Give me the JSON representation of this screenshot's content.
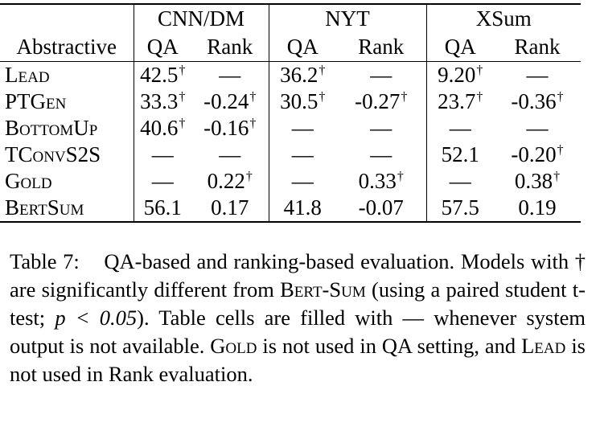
{
  "table": {
    "group_headers": [
      "CNN/DM",
      "NYT",
      "XSum"
    ],
    "row_header_label": "Abstractive",
    "sub_headers": [
      "QA",
      "Rank",
      "QA",
      "Rank",
      "QA",
      "Rank"
    ],
    "rows": [
      {
        "name": "Lead",
        "cells": [
          {
            "v": "42.5",
            "d": true
          },
          {
            "v": "—",
            "d": false
          },
          {
            "v": "36.2",
            "d": true
          },
          {
            "v": "—",
            "d": false
          },
          {
            "v": "9.20",
            "d": true
          },
          {
            "v": "—",
            "d": false
          }
        ]
      },
      {
        "name": "PTGen",
        "cells": [
          {
            "v": "33.3",
            "d": true
          },
          {
            "v": "-0.24",
            "d": true
          },
          {
            "v": "30.5",
            "d": true
          },
          {
            "v": "-0.27",
            "d": true
          },
          {
            "v": "23.7",
            "d": true
          },
          {
            "v": "-0.36",
            "d": true
          }
        ]
      },
      {
        "name": "BottomUp",
        "cells": [
          {
            "v": "40.6",
            "d": true
          },
          {
            "v": "-0.16",
            "d": true
          },
          {
            "v": "—",
            "d": false
          },
          {
            "v": "—",
            "d": false
          },
          {
            "v": "—",
            "d": false
          },
          {
            "v": "—",
            "d": false
          }
        ]
      },
      {
        "name": "TConvS2S",
        "cells": [
          {
            "v": "—",
            "d": false
          },
          {
            "v": "—",
            "d": false
          },
          {
            "v": "—",
            "d": false
          },
          {
            "v": "—",
            "d": false
          },
          {
            "v": "52.1",
            "d": false
          },
          {
            "v": "-0.20",
            "d": true
          }
        ]
      },
      {
        "name": "Gold",
        "cells": [
          {
            "v": "—",
            "d": false
          },
          {
            "v": "0.22",
            "d": true
          },
          {
            "v": "—",
            "d": false
          },
          {
            "v": "0.33",
            "d": true
          },
          {
            "v": "—",
            "d": false
          },
          {
            "v": "0.38",
            "d": true
          }
        ]
      },
      {
        "name": "BertSum",
        "cells": [
          {
            "v": "56.1",
            "d": false
          },
          {
            "v": "0.17",
            "d": false
          },
          {
            "v": "41.8",
            "d": false
          },
          {
            "v": "-0.07",
            "d": false
          },
          {
            "v": "57.5",
            "d": false
          },
          {
            "v": "0.19",
            "d": false
          }
        ]
      }
    ],
    "dagger_symbol": "†"
  },
  "caption": {
    "label": "Table 7:",
    "text_1": "QA-based and ranking-based evaluation. Models with † are significantly different from ",
    "sc_1": "Bert-Sum",
    "text_2": " (using a paired student t-test; ",
    "math": "p < 0.05",
    "text_3": "). Table cells are filled with — whenever system output is not available. ",
    "sc_2": "Gold",
    "text_4": " is not used in QA setting, and ",
    "sc_3": "Lead",
    "text_5": " is not used in Rank evaluation."
  }
}
